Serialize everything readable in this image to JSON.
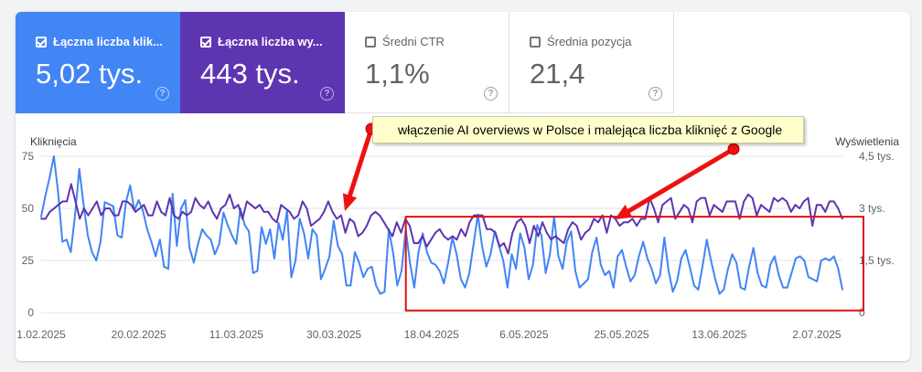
{
  "metrics": [
    {
      "label": "Łączna liczba klik...",
      "value": "5,02 tys.",
      "checked": true,
      "color": "#4285f4"
    },
    {
      "label": "Łączna liczba wy...",
      "value": "443 tys.",
      "checked": true,
      "color": "#5e35b1"
    },
    {
      "label": "Średni CTR",
      "value": "1,1%",
      "checked": false
    },
    {
      "label": "Średnia pozycja",
      "value": "21,4",
      "checked": false
    }
  ],
  "help_glyph": "?",
  "annotation": {
    "text": "włączenie AI overviews w Polsce i malejąca liczba kliknięć z Google",
    "arrow_color": "#ee1111",
    "box_color": "#ffffcc",
    "highlight_color": "#dd1111"
  },
  "chart_data": {
    "type": "line",
    "x_start": "2025-02-01",
    "x_end": "2025-07-07",
    "x_ticks": [
      "1.02.2025",
      "20.02.2025",
      "11.03.2025",
      "30.03.2025",
      "18.04.2025",
      "6.05.2025",
      "25.05.2025",
      "13.06.2025",
      "2.07.2025"
    ],
    "y_left": {
      "label": "Kliknięcia",
      "ticks": [
        "0",
        "25",
        "50",
        "75"
      ],
      "range": [
        0,
        75
      ]
    },
    "y_right": {
      "label": "Wyświetlenia",
      "ticks": [
        "0",
        "1,5 tys.",
        "3 tys.",
        "4,5 tys."
      ],
      "range": [
        0,
        4500
      ]
    },
    "grid": true,
    "highlight": {
      "from": "2025-04-13",
      "to": "2025-07-07",
      "y_range": [
        1,
        46
      ]
    },
    "series": [
      {
        "name": "Kliknięcia",
        "axis": "left",
        "color": "#4285f4",
        "values": [
          46,
          56,
          65,
          75,
          58,
          34,
          35,
          29,
          47,
          69,
          52,
          37,
          29,
          25,
          34,
          53,
          52,
          51,
          37,
          36,
          53,
          61,
          49,
          54,
          49,
          40,
          34,
          27,
          35,
          22,
          21,
          57,
          32,
          50,
          54,
          31,
          24,
          33,
          40,
          37,
          35,
          28,
          33,
          48,
          42,
          37,
          33,
          50,
          42,
          39,
          19,
          20,
          41,
          33,
          40,
          26,
          43,
          35,
          49,
          17,
          25,
          45,
          38,
          26,
          40,
          37,
          16,
          21,
          27,
          44,
          32,
          28,
          13,
          13,
          29,
          24,
          17,
          21,
          22,
          13,
          9,
          10,
          40,
          29,
          13,
          20,
          40,
          24,
          12,
          29,
          38,
          29,
          24,
          23,
          20,
          14,
          24,
          36,
          28,
          16,
          12,
          19,
          33,
          47,
          32,
          22,
          28,
          39,
          32,
          25,
          12,
          28,
          21,
          38,
          31,
          16,
          23,
          42,
          37,
          19,
          28,
          46,
          27,
          21,
          34,
          39,
          20,
          12,
          14,
          16,
          29,
          36,
          23,
          18,
          20,
          12,
          27,
          30,
          22,
          15,
          18,
          27,
          34,
          26,
          21,
          14,
          18,
          36,
          20,
          10,
          15,
          26,
          30,
          22,
          13,
          11,
          22,
          35,
          25,
          16,
          9,
          11,
          21,
          28,
          24,
          12,
          11,
          22,
          31,
          19,
          13,
          12,
          23,
          27,
          18,
          12,
          12,
          19,
          26,
          27,
          25,
          17,
          16,
          15,
          25,
          26,
          25,
          27,
          21,
          11
        ]
      },
      {
        "name": "Wyświetlenia",
        "axis": "right",
        "color": "#5e35b1",
        "values": [
          2700,
          2700,
          2900,
          3000,
          3100,
          3200,
          3200,
          3700,
          3200,
          2700,
          3000,
          2800,
          3000,
          3200,
          2800,
          3000,
          3000,
          2800,
          2800,
          3200,
          3200,
          3100,
          2900,
          3000,
          3100,
          2800,
          2800,
          3200,
          2900,
          2800,
          3300,
          2800,
          2700,
          2900,
          2800,
          2900,
          3300,
          3100,
          3000,
          3200,
          2900,
          2700,
          3000,
          3100,
          3400,
          3000,
          3100,
          2700,
          3200,
          3100,
          3000,
          3100,
          2900,
          2900,
          2700,
          2600,
          3100,
          3000,
          2900,
          2700,
          2800,
          3200,
          3000,
          2500,
          2600,
          2700,
          2900,
          3200,
          2900,
          2700,
          2800,
          2300,
          2700,
          2600,
          2200,
          2300,
          2500,
          2800,
          2900,
          2800,
          2600,
          2400,
          2200,
          2600,
          2300,
          2700,
          2500,
          2000,
          2000,
          2200,
          1900,
          2100,
          2300,
          2400,
          2200,
          2100,
          2200,
          2100,
          2400,
          2200,
          2600,
          2800,
          2800,
          2800,
          2400,
          2400,
          2300,
          1900,
          2000,
          1700,
          2300,
          2600,
          2700,
          2500,
          2000,
          2500,
          2200,
          2600,
          2300,
          2100,
          2200,
          2100,
          2000,
          2400,
          2600,
          2500,
          2100,
          2300,
          2400,
          2700,
          2600,
          2800,
          2300,
          2800,
          2700,
          2500,
          2600,
          2600,
          2700,
          2500,
          2700,
          2700,
          3300,
          3000,
          2600,
          3100,
          3200,
          3300,
          2700,
          2900,
          3100,
          3000,
          2600,
          3200,
          3300,
          3300,
          2800,
          3100,
          3000,
          2900,
          3200,
          3200,
          3200,
          2700,
          3200,
          3400,
          3300,
          2800,
          3100,
          3000,
          2900,
          3300,
          3200,
          3300,
          3200,
          2900,
          3100,
          3000,
          3200,
          3300,
          2500,
          3100,
          3100,
          2900,
          3200,
          3200,
          3000,
          2700
        ]
      }
    ]
  }
}
